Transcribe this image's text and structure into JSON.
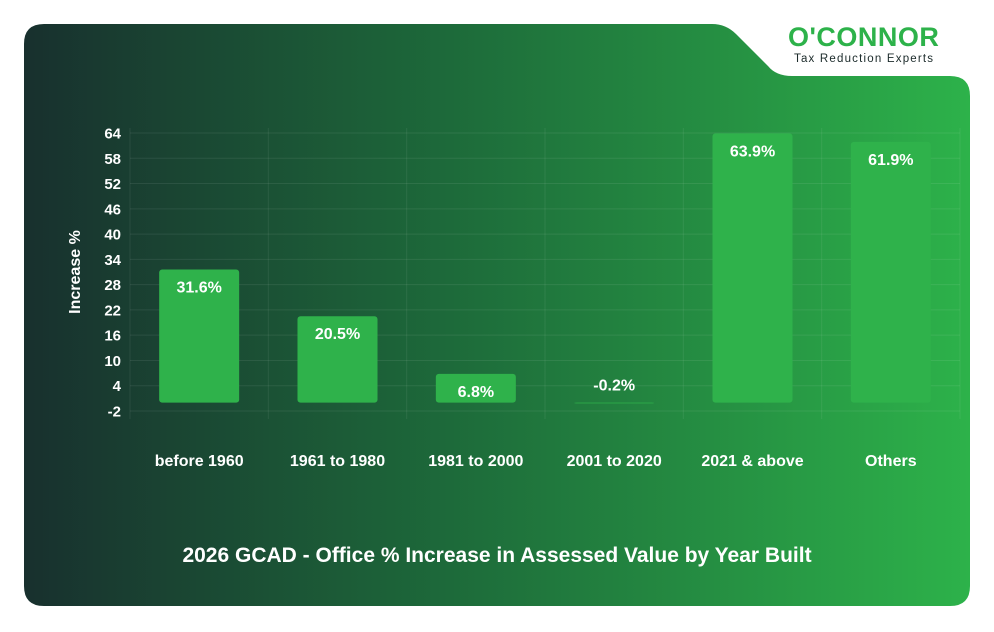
{
  "brand": {
    "name": "O'CONNOR",
    "tagline": "Tax Reduction Experts",
    "color": "#2db24a"
  },
  "colors": {
    "background_dark": "#18302e",
    "background_light": "#2db24a",
    "bar": "#2fb24b",
    "text": "#ffffff"
  },
  "chart_data": {
    "type": "bar",
    "title": "2026 GCAD - Office % Increase in Assessed Value by Year Built",
    "xlabel": "",
    "ylabel": "Increase %",
    "categories": [
      "before 1960",
      "1961 to 1980",
      "1981 to 2000",
      "2001 to 2020",
      "2021 & above",
      "Others"
    ],
    "values": [
      31.6,
      20.5,
      6.8,
      -0.2,
      63.9,
      61.9
    ],
    "data_labels": [
      "31.6%",
      "20.5%",
      "6.8%",
      "-0.2%",
      "63.9%",
      "61.9%"
    ],
    "yticks": [
      64,
      58,
      52,
      46,
      40,
      34,
      28,
      22,
      16,
      10,
      4,
      -2
    ],
    "ylim": [
      -2,
      64
    ],
    "grid": true,
    "legend": "none"
  }
}
